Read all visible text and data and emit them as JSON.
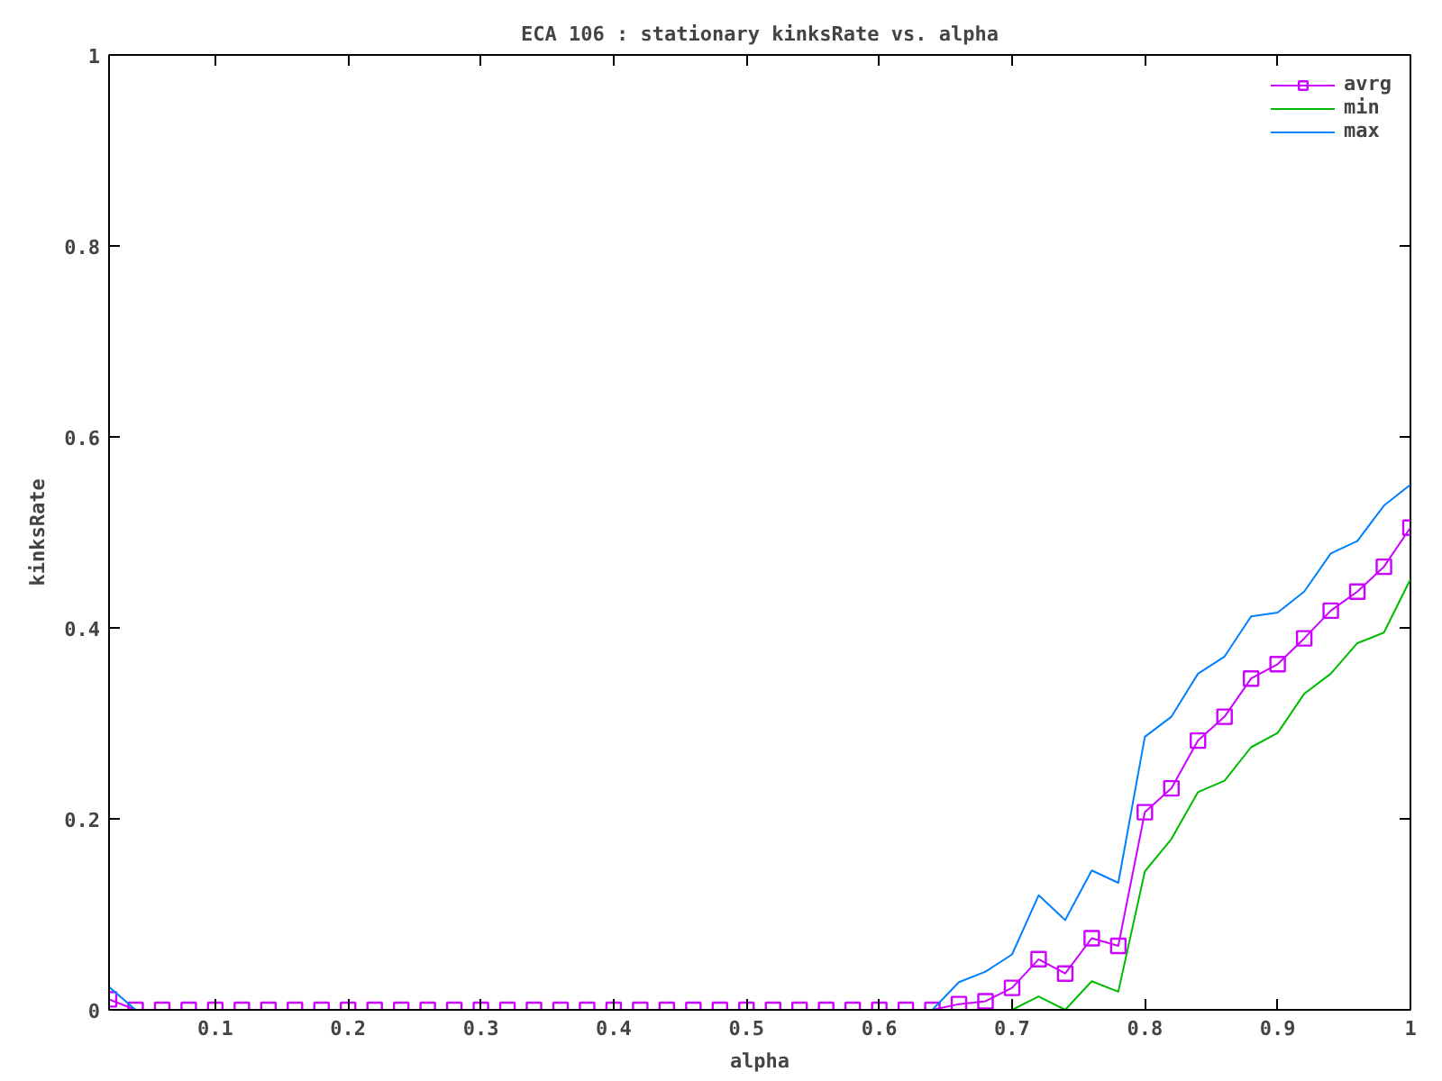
{
  "chart_data": {
    "type": "line",
    "title": "ECA 106 : stationary kinksRate vs. alpha",
    "xlabel": "alpha",
    "ylabel": "kinksRate",
    "x": [
      0.02,
      0.04,
      0.06,
      0.08,
      0.1,
      0.12,
      0.14,
      0.16,
      0.18,
      0.2,
      0.22,
      0.24,
      0.26,
      0.28,
      0.3,
      0.32,
      0.34,
      0.36,
      0.38,
      0.4,
      0.42,
      0.44,
      0.46,
      0.48,
      0.5,
      0.52,
      0.54,
      0.56,
      0.58,
      0.6,
      0.62,
      0.64,
      0.66,
      0.68,
      0.7,
      0.72,
      0.74,
      0.76,
      0.78,
      0.8,
      0.82,
      0.84,
      0.86,
      0.88,
      0.9,
      0.92,
      0.94,
      0.96,
      0.98,
      1.0
    ],
    "series": [
      {
        "name": "avrg",
        "color": "#cc00ff",
        "marker": "square",
        "values": [
          0.011,
          0,
          0,
          0,
          0,
          0,
          0,
          0,
          0,
          0,
          0,
          0,
          0,
          0,
          0,
          0,
          0,
          0,
          0,
          0,
          0,
          0,
          0,
          0,
          0,
          0,
          0,
          0,
          0,
          0,
          0,
          0,
          0.006,
          0.009,
          0.023,
          0.053,
          0.038,
          0.075,
          0.067,
          0.207,
          0.232,
          0.282,
          0.307,
          0.347,
          0.362,
          0.389,
          0.418,
          0.438,
          0.464,
          0.505
        ]
      },
      {
        "name": "min",
        "color": "#00bb00",
        "marker": "none",
        "values": [
          null,
          null,
          null,
          null,
          null,
          null,
          null,
          null,
          null,
          null,
          null,
          null,
          null,
          null,
          null,
          null,
          null,
          null,
          null,
          null,
          null,
          null,
          null,
          null,
          null,
          null,
          null,
          null,
          null,
          null,
          null,
          null,
          null,
          null,
          0,
          0.014,
          0,
          0.03,
          0.019,
          0.145,
          0.179,
          0.228,
          0.24,
          0.275,
          0.29,
          0.331,
          0.352,
          0.384,
          0.395,
          0.451
        ]
      },
      {
        "name": "max",
        "color": "#0080ff",
        "marker": "none",
        "values": [
          0.024,
          0,
          null,
          null,
          null,
          null,
          null,
          null,
          null,
          null,
          null,
          null,
          null,
          null,
          null,
          null,
          null,
          null,
          null,
          null,
          null,
          null,
          null,
          null,
          null,
          null,
          null,
          null,
          null,
          null,
          null,
          0,
          0.029,
          0.04,
          0.058,
          0.12,
          0.094,
          0.146,
          0.133,
          0.286,
          0.307,
          0.352,
          0.37,
          0.412,
          0.416,
          0.438,
          0.478,
          0.491,
          0.528,
          0.55
        ]
      }
    ],
    "xlim": [
      0.02,
      1
    ],
    "xticks": [
      0.1,
      0.2,
      0.3,
      0.4,
      0.5,
      0.6,
      0.7,
      0.8,
      0.9,
      1
    ],
    "ylim": [
      0,
      1
    ],
    "yticks": [
      0,
      0.2,
      0.4,
      0.6,
      0.8,
      1
    ],
    "grid": false,
    "legend": "top right",
    "line_style": "solid"
  }
}
